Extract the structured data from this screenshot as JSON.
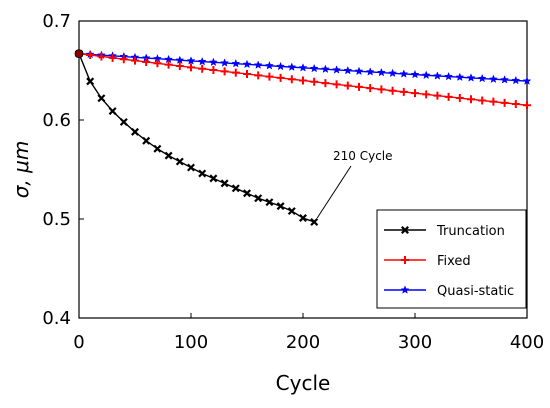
{
  "chart_data": {
    "type": "line",
    "xlabel": "Cycle",
    "ylabel": "σ, μm",
    "xlim": [
      0,
      400
    ],
    "ylim": [
      0.4,
      0.7
    ],
    "xticks": [
      0,
      100,
      200,
      300,
      400
    ],
    "yticks": [
      0.4,
      0.5,
      0.6,
      0.7
    ],
    "xtick_labels": [
      "0",
      "100",
      "200",
      "300",
      "400"
    ],
    "ytick_labels": [
      "0.4",
      "0.5",
      "0.6",
      "0.7"
    ],
    "grid": false,
    "legend_position": "bottom-right",
    "series": [
      {
        "name": "Truncation",
        "color": "#000000",
        "marker": "x",
        "x": [
          0,
          10,
          20,
          30,
          40,
          50,
          60,
          70,
          80,
          90,
          100,
          110,
          120,
          130,
          140,
          150,
          160,
          170,
          180,
          190,
          200,
          210
        ],
        "y": [
          0.667,
          0.639,
          0.622,
          0.609,
          0.598,
          0.588,
          0.579,
          0.571,
          0.564,
          0.558,
          0.552,
          0.546,
          0.541,
          0.536,
          0.531,
          0.526,
          0.521,
          0.517,
          0.513,
          0.508,
          0.501,
          0.497
        ]
      },
      {
        "name": "Fixed",
        "color": "#ff0000",
        "marker": "+",
        "x": [
          0,
          10,
          20,
          30,
          40,
          50,
          60,
          70,
          80,
          90,
          100,
          110,
          120,
          130,
          140,
          150,
          160,
          170,
          180,
          190,
          200,
          210,
          220,
          230,
          240,
          250,
          260,
          270,
          280,
          290,
          300,
          310,
          320,
          330,
          340,
          350,
          360,
          370,
          380,
          390,
          400
        ],
        "y": [
          0.667,
          0.6656,
          0.6642,
          0.6628,
          0.6614,
          0.66,
          0.6586,
          0.6573,
          0.6559,
          0.6545,
          0.6532,
          0.6518,
          0.6505,
          0.6491,
          0.6478,
          0.6465,
          0.6451,
          0.6438,
          0.6425,
          0.6412,
          0.6399,
          0.6386,
          0.6373,
          0.636,
          0.6347,
          0.6334,
          0.6322,
          0.6309,
          0.6296,
          0.6284,
          0.6271,
          0.6259,
          0.6246,
          0.6234,
          0.6222,
          0.6209,
          0.6197,
          0.6185,
          0.6173,
          0.6161,
          0.6149
        ]
      },
      {
        "name": "Quasi-static",
        "color": "#0000ff",
        "marker": "*",
        "x": [
          0,
          10,
          20,
          30,
          40,
          50,
          60,
          70,
          80,
          90,
          100,
          110,
          120,
          130,
          140,
          150,
          160,
          170,
          180,
          190,
          200,
          210,
          220,
          230,
          240,
          250,
          260,
          270,
          280,
          290,
          300,
          310,
          320,
          330,
          340,
          350,
          360,
          370,
          380,
          390,
          400
        ],
        "y": [
          0.667,
          0.6663,
          0.6655,
          0.6648,
          0.6641,
          0.6633,
          0.6626,
          0.6619,
          0.6612,
          0.6604,
          0.6597,
          0.659,
          0.6583,
          0.6576,
          0.6569,
          0.6562,
          0.6555,
          0.6548,
          0.6541,
          0.6534,
          0.6527,
          0.652,
          0.6513,
          0.6506,
          0.6499,
          0.6492,
          0.6486,
          0.6479,
          0.6472,
          0.6465,
          0.6459,
          0.6452,
          0.6445,
          0.6439,
          0.6432,
          0.6425,
          0.6419,
          0.6412,
          0.6406,
          0.6399,
          0.6393
        ]
      }
    ],
    "start_point": {
      "x": 0,
      "y": 0.667,
      "color": "#8b0000"
    },
    "annotation": {
      "text": "210 Cycle",
      "x": 210,
      "y": 0.497
    }
  }
}
